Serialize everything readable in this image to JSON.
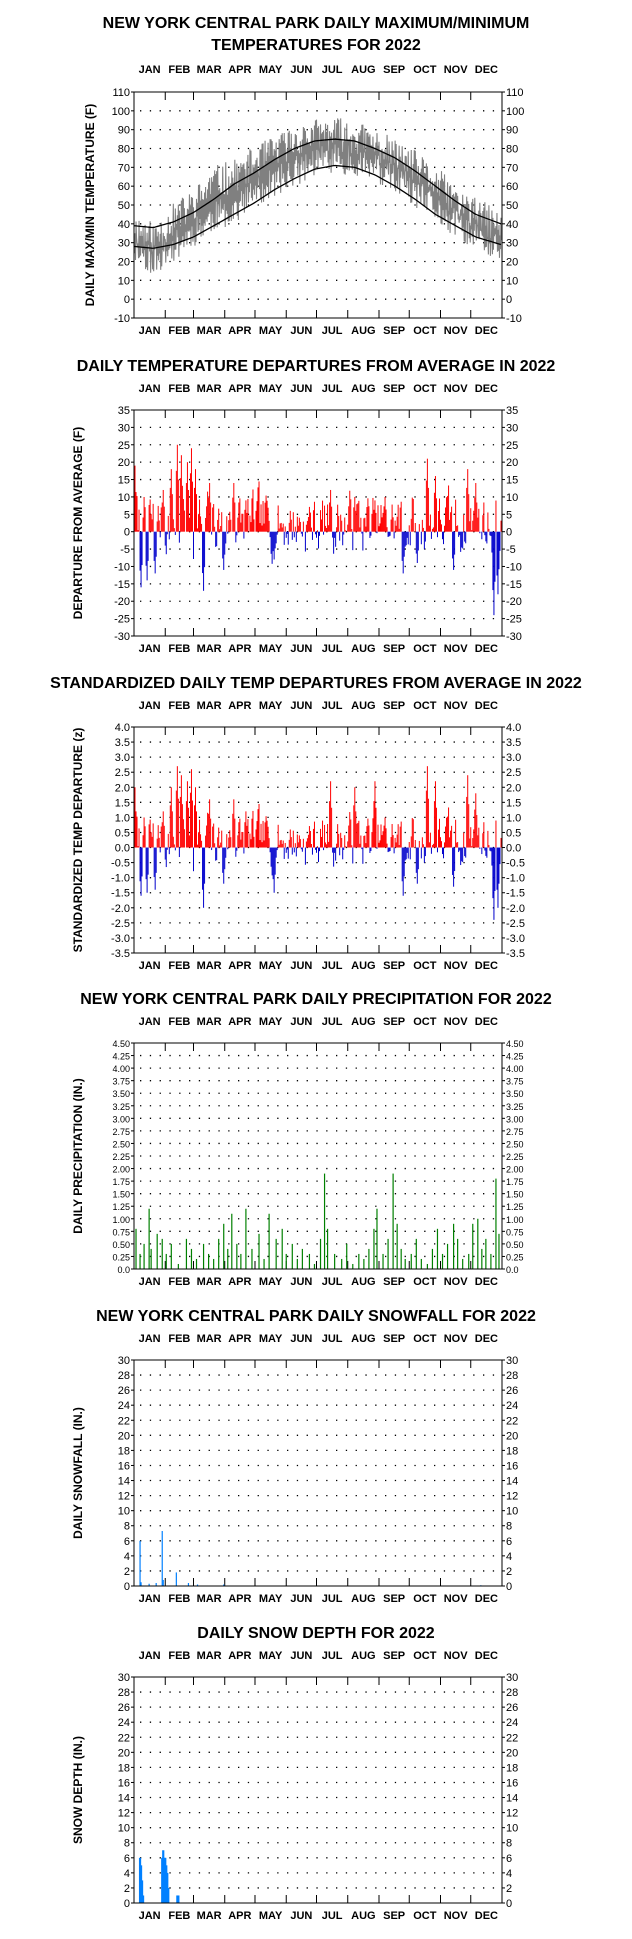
{
  "months": [
    "JAN",
    "FEB",
    "MAR",
    "APR",
    "MAY",
    "JUN",
    "JUL",
    "AUG",
    "SEP",
    "OCT",
    "NOV",
    "DEC"
  ],
  "chart_data": [
    {
      "id": "temp",
      "type": "line",
      "title_lines": [
        "NEW YORK CENTRAL PARK DAILY MAXIMUM/MINIMUM",
        "TEMPERATURES FOR 2022"
      ],
      "ylabel": "DAILY MAX/MIN TEMPERATURE (F)",
      "xlabel": "",
      "ylim": [
        -10,
        110
      ],
      "yticks": [
        -10,
        0,
        10,
        20,
        30,
        40,
        50,
        60,
        70,
        80,
        90,
        100,
        110
      ],
      "tick_labels": [
        "-10",
        "0",
        "10",
        "20",
        "30",
        "40",
        "50",
        "60",
        "70",
        "80",
        "90",
        "100",
        "110"
      ],
      "grid": true,
      "series": [
        {
          "values_key": "daily_max_min_band",
          "color": "#808080",
          "max_knots": [
            [
              1,
              38
            ],
            [
              20,
              32
            ],
            [
              40,
              42
            ],
            [
              60,
              50
            ],
            [
              80,
              62
            ],
            [
              100,
              65
            ],
            [
              120,
              72
            ],
            [
              140,
              78
            ],
            [
              160,
              84
            ],
            [
              180,
              87
            ],
            [
              200,
              88
            ],
            [
              220,
              86
            ],
            [
              240,
              82
            ],
            [
              260,
              76
            ],
            [
              280,
              70
            ],
            [
              300,
              62
            ],
            [
              320,
              52
            ],
            [
              340,
              45
            ],
            [
              365,
              38
            ]
          ],
          "min_knots": [
            [
              1,
              28
            ],
            [
              20,
              20
            ],
            [
              40,
              28
            ],
            [
              60,
              36
            ],
            [
              80,
              44
            ],
            [
              100,
              48
            ],
            [
              120,
              56
            ],
            [
              140,
              62
            ],
            [
              160,
              68
            ],
            [
              180,
              73
            ],
            [
              200,
              75
            ],
            [
              220,
              73
            ],
            [
              240,
              70
            ],
            [
              260,
              64
            ],
            [
              280,
              56
            ],
            [
              300,
              48
            ],
            [
              320,
              40
            ],
            [
              340,
              33
            ],
            [
              365,
              26
            ]
          ]
        },
        {
          "values_key": "normal_max",
          "color": "#000000",
          "knots": [
            [
              1,
              39
            ],
            [
              20,
              38
            ],
            [
              40,
              41
            ],
            [
              60,
              46
            ],
            [
              80,
              53
            ],
            [
              100,
              61
            ],
            [
              120,
              67
            ],
            [
              140,
              74
            ],
            [
              160,
              80
            ],
            [
              180,
              84
            ],
            [
              200,
              85
            ],
            [
              220,
              84
            ],
            [
              240,
              80
            ],
            [
              260,
              75
            ],
            [
              280,
              68
            ],
            [
              300,
              60
            ],
            [
              320,
              52
            ],
            [
              340,
              45
            ],
            [
              365,
              40
            ]
          ]
        },
        {
          "values_key": "normal_min",
          "color": "#000000",
          "knots": [
            [
              1,
              28
            ],
            [
              20,
              27
            ],
            [
              40,
              29
            ],
            [
              60,
              33
            ],
            [
              80,
              39
            ],
            [
              100,
              45
            ],
            [
              120,
              51
            ],
            [
              140,
              58
            ],
            [
              160,
              64
            ],
            [
              180,
              69
            ],
            [
              200,
              71
            ],
            [
              220,
              70
            ],
            [
              240,
              66
            ],
            [
              260,
              60
            ],
            [
              280,
              53
            ],
            [
              300,
              45
            ],
            [
              320,
              39
            ],
            [
              340,
              33
            ],
            [
              365,
              29
            ]
          ]
        }
      ]
    },
    {
      "id": "dep",
      "type": "bar",
      "title_lines": [
        "DAILY TEMPERATURE DEPARTURES FROM AVERAGE IN 2022"
      ],
      "ylabel": "DEPARTURE FROM AVERAGE (F)",
      "xlabel": "",
      "ylim": [
        -30,
        35
      ],
      "yticks": [
        -30,
        -25,
        -20,
        -15,
        -10,
        -5,
        0,
        5,
        10,
        15,
        20,
        25,
        30,
        35
      ],
      "tick_labels": [
        "-30",
        "-25",
        "-20",
        "-15",
        "-10",
        "-5",
        "0",
        "5",
        "10",
        "15",
        "20",
        "25",
        "30",
        "35"
      ],
      "grid": true,
      "positive_color": "#ff0000",
      "negative_color": "#0000cc",
      "seed": 7,
      "amplitude": 10,
      "spikes": [
        [
          2,
          19
        ],
        [
          8,
          -16
        ],
        [
          14,
          -14
        ],
        [
          22,
          -12
        ],
        [
          30,
          12
        ],
        [
          38,
          18
        ],
        [
          44,
          25
        ],
        [
          48,
          22
        ],
        [
          54,
          20
        ],
        [
          58,
          24
        ],
        [
          62,
          18
        ],
        [
          70,
          -17
        ],
        [
          76,
          14
        ],
        [
          90,
          -11
        ],
        [
          100,
          14
        ],
        [
          112,
          9
        ],
        [
          140,
          -8
        ],
        [
          196,
          12
        ],
        [
          220,
          10
        ],
        [
          240,
          9
        ],
        [
          268,
          -12
        ],
        [
          282,
          -9
        ],
        [
          292,
          21
        ],
        [
          300,
          16
        ],
        [
          318,
          -11
        ],
        [
          332,
          18
        ],
        [
          340,
          14
        ],
        [
          358,
          -24
        ],
        [
          362,
          -18
        ]
      ]
    },
    {
      "id": "std",
      "type": "bar",
      "title_lines": [
        "STANDARDIZED DAILY TEMP DEPARTURES FROM AVERAGE IN 2022"
      ],
      "ylabel": "STANDARDIZED TEMP DEPARTURE (z)",
      "xlabel": "",
      "ylim": [
        -3.5,
        4.0
      ],
      "yticks": [
        -3.5,
        -3,
        -2.5,
        -2,
        -1.5,
        -1,
        -0.5,
        0,
        0.5,
        1,
        1.5,
        2,
        2.5,
        3,
        3.5,
        4
      ],
      "tick_labels": [
        "-3.5",
        "-3.0",
        "-2.5",
        "-2.0",
        "-1.5",
        "-1.0",
        "-0.5",
        "0.0",
        "0.5",
        "1.0",
        "1.5",
        "2.0",
        "2.5",
        "3.0",
        "3.5",
        "4.0"
      ],
      "grid": true,
      "positive_color": "#ff0000",
      "negative_color": "#0000cc",
      "seed": 7,
      "amplitude": 1.0,
      "spikes": [
        [
          2,
          2.0
        ],
        [
          8,
          -1.6
        ],
        [
          14,
          -1.5
        ],
        [
          22,
          -1.4
        ],
        [
          30,
          1.2
        ],
        [
          38,
          2.0
        ],
        [
          44,
          2.7
        ],
        [
          48,
          2.4
        ],
        [
          54,
          2.2
        ],
        [
          58,
          2.6
        ],
        [
          62,
          2.0
        ],
        [
          70,
          -2.0
        ],
        [
          76,
          1.6
        ],
        [
          90,
          -1.2
        ],
        [
          100,
          1.6
        ],
        [
          112,
          1.2
        ],
        [
          140,
          -1.5
        ],
        [
          196,
          2.2
        ],
        [
          220,
          2.0
        ],
        [
          240,
          2.2
        ],
        [
          268,
          -1.6
        ],
        [
          282,
          -1.2
        ],
        [
          292,
          2.7
        ],
        [
          300,
          2.2
        ],
        [
          318,
          -1.3
        ],
        [
          332,
          2.4
        ],
        [
          340,
          1.8
        ],
        [
          358,
          -2.4
        ],
        [
          362,
          -2.0
        ]
      ]
    },
    {
      "id": "prcp",
      "type": "bar",
      "title_lines": [
        "NEW YORK CENTRAL PARK DAILY PRECIPITATION FOR 2022"
      ],
      "ylabel": "DAILY PRECIPITATION (IN.)",
      "xlabel": "",
      "ylim": [
        0,
        4.5
      ],
      "yticks": [
        0,
        0.25,
        0.5,
        0.75,
        1,
        1.25,
        1.5,
        1.75,
        2,
        2.25,
        2.5,
        2.75,
        3,
        3.25,
        3.5,
        3.75,
        4,
        4.25,
        4.5
      ],
      "tick_labels": [
        "0.0",
        "0.25",
        "0.50",
        "0.75",
        "1.00",
        "1.25",
        "1.50",
        "1.75",
        "2.00",
        "2.25",
        "2.50",
        "2.75",
        "3.00",
        "3.25",
        "3.50",
        "3.75",
        "4.00",
        "4.25",
        "4.50"
      ],
      "small_ticks": true,
      "grid": true,
      "color": "#008000",
      "events": [
        [
          3,
          0.8
        ],
        [
          7,
          0.3
        ],
        [
          11,
          0.5
        ],
        [
          16,
          1.2
        ],
        [
          18,
          0.4
        ],
        [
          24,
          0.7
        ],
        [
          29,
          0.6
        ],
        [
          33,
          0.3
        ],
        [
          38,
          0.5
        ],
        [
          45,
          0.1
        ],
        [
          53,
          0.6
        ],
        [
          58,
          0.4
        ],
        [
          63,
          0.2
        ],
        [
          70,
          0.5
        ],
        [
          75,
          0.3
        ],
        [
          80,
          0.2
        ],
        [
          85,
          0.6
        ],
        [
          90,
          0.9
        ],
        [
          94,
          0.4
        ],
        [
          98,
          1.1
        ],
        [
          103,
          0.5
        ],
        [
          107,
          0.3
        ],
        [
          112,
          1.2
        ],
        [
          118,
          0.4
        ],
        [
          125,
          0.7
        ],
        [
          130,
          0.2
        ],
        [
          135,
          1.1
        ],
        [
          142,
          0.6
        ],
        [
          148,
          0.8
        ],
        [
          152,
          0.3
        ],
        [
          158,
          0.5
        ],
        [
          163,
          0.2
        ],
        [
          168,
          0.4
        ],
        [
          175,
          0.3
        ],
        [
          180,
          0.1
        ],
        [
          186,
          0.6
        ],
        [
          190,
          1.9
        ],
        [
          193,
          0.8
        ],
        [
          200,
          0.3
        ],
        [
          207,
          0.2
        ],
        [
          212,
          0.5
        ],
        [
          218,
          0.1
        ],
        [
          224,
          0.3
        ],
        [
          229,
          0.2
        ],
        [
          234,
          0.4
        ],
        [
          239,
          0.8
        ],
        [
          242,
          1.2
        ],
        [
          248,
          0.3
        ],
        [
          253,
          0.6
        ],
        [
          258,
          1.9
        ],
        [
          262,
          0.9
        ],
        [
          266,
          0.4
        ],
        [
          270,
          0.2
        ],
        [
          276,
          0.3
        ],
        [
          281,
          0.6
        ],
        [
          286,
          0.2
        ],
        [
          292,
          0.1
        ],
        [
          297,
          0.4
        ],
        [
          302,
          0.8
        ],
        [
          307,
          0.3
        ],
        [
          312,
          0.5
        ],
        [
          318,
          0.9
        ],
        [
          322,
          0.6
        ],
        [
          327,
          0.2
        ],
        [
          333,
          0.3
        ],
        [
          337,
          0.9
        ],
        [
          342,
          1.0
        ],
        [
          346,
          0.4
        ],
        [
          350,
          0.6
        ],
        [
          355,
          0.3
        ],
        [
          360,
          1.8
        ],
        [
          363,
          0.7
        ]
      ]
    },
    {
      "id": "snow",
      "type": "bar",
      "title_lines": [
        "NEW YORK CENTRAL PARK DAILY SNOWFALL FOR 2022"
      ],
      "ylabel": "DAILY SNOWFALL (IN.)",
      "xlabel": "",
      "ylim": [
        0,
        30
      ],
      "yticks": [
        0,
        2,
        4,
        6,
        8,
        10,
        12,
        14,
        16,
        18,
        20,
        22,
        24,
        26,
        28,
        30
      ],
      "tick_labels": [
        "0",
        "2",
        "4",
        "6",
        "8",
        "10",
        "12",
        "14",
        "16",
        "18",
        "20",
        "22",
        "24",
        "26",
        "28",
        "30"
      ],
      "grid": true,
      "color": "#0080ff",
      "events": [
        [
          7,
          6.0
        ],
        [
          8,
          0.5
        ],
        [
          16,
          0.3
        ],
        [
          23,
          0.4
        ],
        [
          29,
          7.3
        ],
        [
          30,
          0.8
        ],
        [
          43,
          1.8
        ],
        [
          55,
          0.4
        ],
        [
          64,
          0.2
        ],
        [
          90,
          0.2
        ],
        [
          345,
          0.1
        ]
      ]
    },
    {
      "id": "depth",
      "type": "bar",
      "title_lines": [
        "DAILY SNOW DEPTH FOR 2022"
      ],
      "ylabel": "SNOW DEPTH (IN.)",
      "xlabel": "",
      "ylim": [
        0,
        30
      ],
      "yticks": [
        0,
        2,
        4,
        6,
        8,
        10,
        12,
        14,
        16,
        18,
        20,
        22,
        24,
        26,
        28,
        30
      ],
      "tick_labels": [
        "0",
        "2",
        "4",
        "6",
        "8",
        "10",
        "12",
        "14",
        "16",
        "18",
        "20",
        "22",
        "24",
        "26",
        "28",
        "30"
      ],
      "grid": true,
      "color": "#0080ff",
      "events": [
        [
          7,
          6
        ],
        [
          8,
          5
        ],
        [
          9,
          3
        ],
        [
          10,
          1
        ],
        [
          29,
          6
        ],
        [
          30,
          7
        ],
        [
          31,
          6
        ],
        [
          32,
          6
        ],
        [
          33,
          5
        ],
        [
          34,
          4
        ],
        [
          35,
          2
        ],
        [
          44,
          1
        ],
        [
          45,
          1
        ]
      ]
    }
  ]
}
